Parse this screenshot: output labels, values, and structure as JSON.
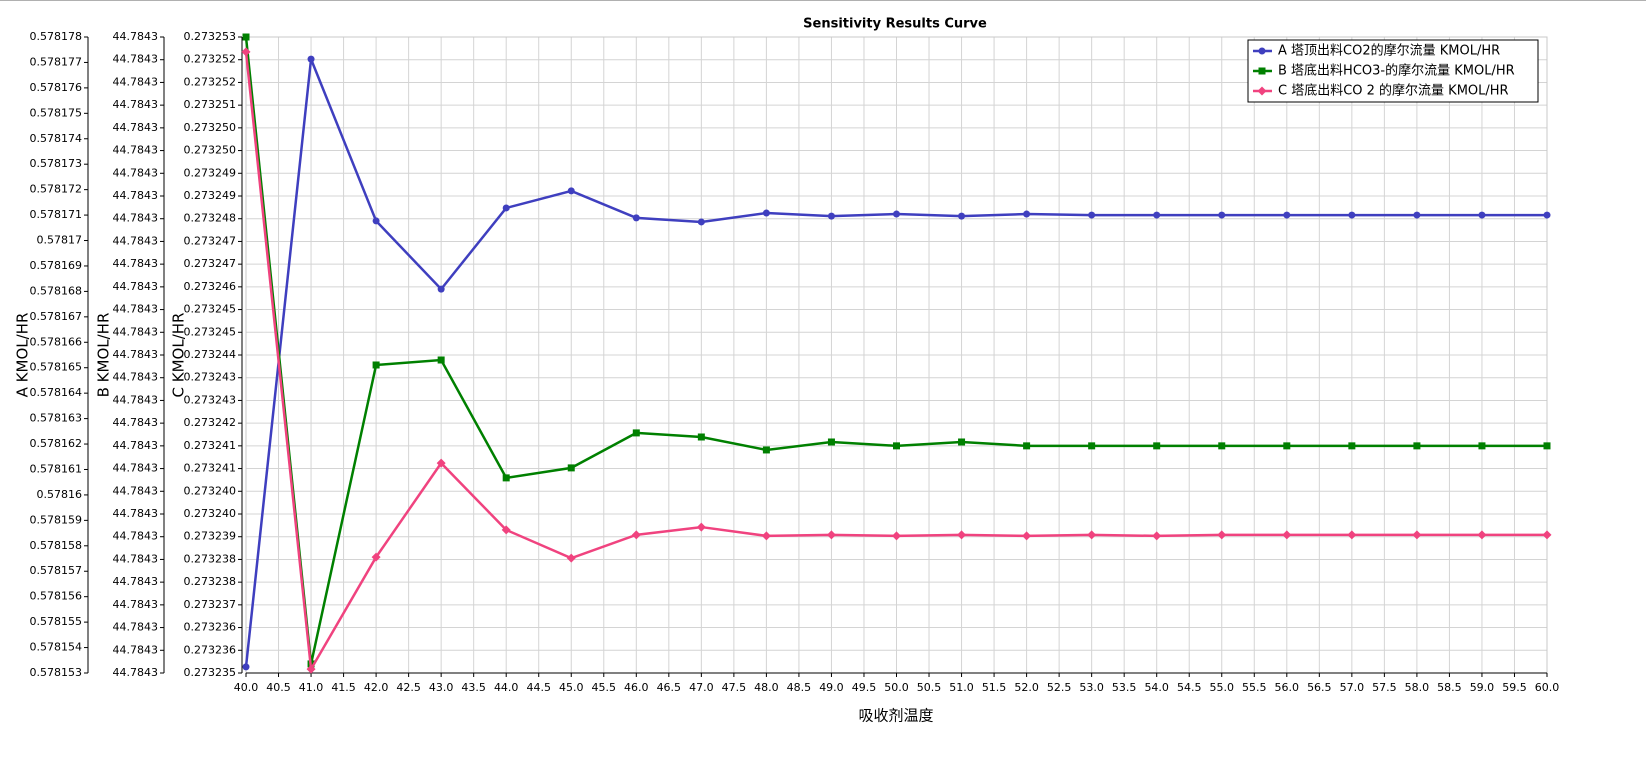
{
  "chart_data": {
    "type": "line",
    "title": "Sensitivity Results Curve",
    "xlabel": "吸收剂温度",
    "x": [
      40,
      41,
      42,
      43,
      44,
      45,
      46,
      47,
      48,
      49,
      50,
      51,
      52,
      53,
      54,
      55,
      56,
      57,
      58,
      59,
      60
    ],
    "xlim": [
      40,
      60
    ],
    "xticks": [
      {
        "value": 40,
        "label": "40.0"
      },
      40.5,
      {
        "value": 41,
        "label": "41.0"
      },
      41.5,
      {
        "value": 42,
        "label": "42.0"
      },
      42.5,
      {
        "value": 43,
        "label": "43.0"
      },
      43.5,
      {
        "value": 44,
        "label": "44.0"
      },
      44.5,
      {
        "value": 45,
        "label": "45.0"
      },
      45.5,
      {
        "value": 46,
        "label": "46.0"
      },
      46.5,
      {
        "value": 47,
        "label": "47.0"
      },
      47.5,
      {
        "value": 48,
        "label": "48.0"
      },
      48.5,
      {
        "value": 49,
        "label": "49.0"
      },
      49.5,
      {
        "value": 50,
        "label": "50.0"
      },
      50.5,
      {
        "value": 51,
        "label": "51.0"
      },
      51.5,
      {
        "value": 52,
        "label": "52.0"
      },
      52.5,
      {
        "value": 53,
        "label": "53.0"
      },
      53.5,
      {
        "value": 54,
        "label": "54.0"
      },
      54.5,
      {
        "value": 55,
        "label": "55.0"
      },
      55.5,
      {
        "value": 56,
        "label": "56.0"
      },
      56.5,
      {
        "value": 57,
        "label": "57.0"
      },
      57.5,
      {
        "value": 58,
        "label": "58.0"
      },
      58.5,
      {
        "value": 59,
        "label": "59.0"
      },
      59.5,
      {
        "value": 60,
        "label": "60.0"
      }
    ],
    "ylabel": "A KMOL/HR",
    "ylim": [
      0.578153,
      0.578178
    ],
    "yticks": [
      0.578153,
      0.578154,
      0.578155,
      0.578156,
      0.578157,
      0.578158,
      0.578159,
      0.57816,
      0.578161,
      0.578162,
      0.578163,
      0.578164,
      0.578165,
      0.578166,
      0.578167,
      0.578168,
      0.578169,
      0.57817,
      0.578171,
      0.578172,
      0.578173,
      0.578174,
      0.578175,
      0.578176,
      0.578177,
      0.578178
    ],
    "y2label": "B KMOL/HR",
    "y2lim": [
      44.784286,
      44.784314
    ],
    "y2ticks": [
      {
        "value": 44.784286,
        "label": "44.7843"
      },
      {
        "value": 44.784287,
        "label": "44.7843"
      },
      {
        "value": 44.784288,
        "label": "44.7843"
      },
      {
        "value": 44.784289,
        "label": "44.7843"
      },
      {
        "value": 44.78429,
        "label": "44.7843"
      },
      {
        "value": 44.784291,
        "label": "44.7843"
      },
      {
        "value": 44.784292,
        "label": "44.7843"
      },
      {
        "value": 44.784293,
        "label": "44.7843"
      },
      {
        "value": 44.784294,
        "label": "44.7843"
      },
      {
        "value": 44.784295,
        "label": "44.7843"
      },
      {
        "value": 44.784296,
        "label": "44.7843"
      },
      {
        "value": 44.784297,
        "label": "44.7843"
      },
      {
        "value": 44.784298,
        "label": "44.7843"
      },
      {
        "value": 44.784299,
        "label": "44.7843"
      },
      {
        "value": 44.7843,
        "label": "44.7843"
      },
      {
        "value": 44.784301,
        "label": "44.7843"
      },
      {
        "value": 44.784302,
        "label": "44.7843"
      },
      {
        "value": 44.784303,
        "label": "44.7843"
      },
      {
        "value": 44.784304,
        "label": "44.7843"
      },
      {
        "value": 44.784305,
        "label": "44.7843"
      },
      {
        "value": 44.784306,
        "label": "44.7843"
      },
      {
        "value": 44.784307,
        "label": "44.7843"
      },
      {
        "value": 44.784308,
        "label": "44.7843"
      },
      {
        "value": 44.784309,
        "label": "44.7843"
      },
      {
        "value": 44.78431,
        "label": "44.7843"
      },
      {
        "value": 44.784311,
        "label": "44.7843"
      },
      {
        "value": 44.784312,
        "label": "44.7843"
      },
      {
        "value": 44.784313,
        "label": "44.7843"
      },
      {
        "value": 44.784314,
        "label": "44.7843"
      }
    ],
    "y3label": "C KMOL/HR",
    "y3lim": [
      0.273235,
      0.273253
    ],
    "y3ticks": [
      0.273235,
      {
        "value": 0.273235643,
        "label": "0.273236"
      },
      {
        "value": 0.273236286,
        "label": "0.273236"
      },
      {
        "value": 0.273236929,
        "label": "0.273237"
      },
      {
        "value": 0.273237571,
        "label": "0.273238"
      },
      {
        "value": 0.273238214,
        "label": "0.273238"
      },
      {
        "value": 0.273238857,
        "label": "0.273239"
      },
      {
        "value": 0.2732395,
        "label": "0.273240"
      },
      {
        "value": 0.273240143,
        "label": "0.273240"
      },
      {
        "value": 0.273240786,
        "label": "0.273241"
      },
      {
        "value": 0.273241429,
        "label": "0.273241"
      },
      {
        "value": 0.273242071,
        "label": "0.273242"
      },
      {
        "value": 0.273242714,
        "label": "0.273243"
      },
      {
        "value": 0.273243357,
        "label": "0.273243"
      },
      {
        "value": 0.273244,
        "label": "0.273244"
      },
      {
        "value": 0.273244643,
        "label": "0.273245"
      },
      {
        "value": 0.273245286,
        "label": "0.273245"
      },
      {
        "value": 0.273245929,
        "label": "0.273246"
      },
      {
        "value": 0.273246571,
        "label": "0.273247"
      },
      {
        "value": 0.273247214,
        "label": "0.273247"
      },
      {
        "value": 0.273247857,
        "label": "0.273248"
      },
      {
        "value": 0.2732485,
        "label": "0.273249"
      },
      {
        "value": 0.273249143,
        "label": "0.273249"
      },
      {
        "value": 0.273249786,
        "label": "0.273250"
      },
      {
        "value": 0.273250429,
        "label": "0.273250"
      },
      {
        "value": 0.273251071,
        "label": "0.273251"
      },
      {
        "value": 0.273251714,
        "label": "0.273252"
      },
      {
        "value": 0.273252357,
        "label": "0.273252"
      },
      0.273253
    ],
    "grid": true,
    "legend": "upper right",
    "series": [
      {
        "name": "A 塔顶出料CO2的摩尔流量 KMOL/HR",
        "color": "#3f3fbf",
        "marker": "circle",
        "axis": "y",
        "values": [
          0.57815324,
          0.57817713,
          0.57817077,
          0.57816809,
          0.57817128,
          0.57817195,
          0.57817089,
          0.57817073,
          0.57817108,
          0.57817096,
          0.57817104,
          0.57817096,
          0.57817104,
          0.578171,
          0.578171,
          0.578171,
          0.578171,
          0.578171,
          0.578171,
          0.578171,
          0.578171
        ]
      },
      {
        "name": "B 塔底出料HCO3-的摩尔流量 KMOL/HR",
        "color": "#008000",
        "marker": "square",
        "axis": "y2",
        "values": [
          44.784314,
          44.7842864,
          44.78429956,
          44.78429978,
          44.78429459,
          44.78429503,
          44.78429657,
          44.78429639,
          44.78429582,
          44.78429617,
          44.784296,
          44.78429617,
          44.784296,
          44.784296,
          44.784296,
          44.784296,
          44.784296,
          44.784296,
          44.784296,
          44.784296,
          44.784296
        ]
      },
      {
        "name": "C 塔底出料CO 2 的摩尔流量 KMOL/HR",
        "color": "#f0437f",
        "marker": "diamond",
        "axis": "y3",
        "values": [
          0.27325258,
          0.27323511,
          0.27323828,
          0.27324094,
          0.27323905,
          0.27323825,
          0.27323891,
          0.27323913,
          0.27323888,
          0.27323891,
          0.27323888,
          0.27323891,
          0.27323888,
          0.27323891,
          0.27323888,
          0.27323891,
          0.27323891,
          0.27323891,
          0.27323891,
          0.27323891,
          0.27323891
        ]
      }
    ]
  }
}
